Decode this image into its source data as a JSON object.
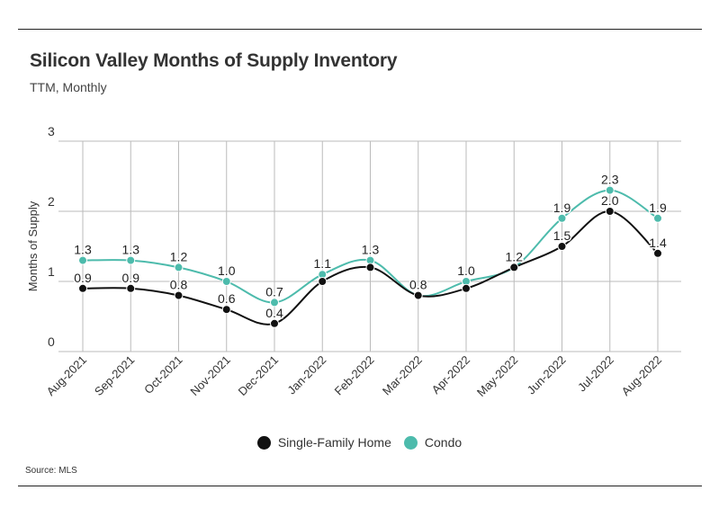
{
  "header": {
    "title": "Silicon Valley Months of Supply Inventory",
    "subtitle": "TTM, Monthly"
  },
  "footer": {
    "source": "Source:  MLS"
  },
  "colors": {
    "single_family": "#111111",
    "condo": "#4dbbac",
    "grid": "#bbbbbb"
  },
  "chart_data": {
    "type": "line",
    "title": "Silicon Valley Months of Supply Inventory",
    "subtitle": "TTM, Monthly",
    "xlabel": "",
    "ylabel": "Months of Supply",
    "ylim": [
      0,
      3
    ],
    "yticks": [
      0,
      1,
      2,
      3
    ],
    "grid": true,
    "legend": "bottom-center",
    "categories": [
      "Aug-2021",
      "Sep-2021",
      "Oct-2021",
      "Nov-2021",
      "Dec-2021",
      "Jan-2022",
      "Feb-2022",
      "Mar-2022",
      "Apr-2022",
      "May-2022",
      "Jun-2022",
      "Jul-2022",
      "Aug-2022"
    ],
    "series": [
      {
        "name": "Single-Family Home",
        "color": "#111111",
        "values": [
          0.9,
          0.9,
          0.8,
          0.6,
          0.4,
          1.0,
          1.2,
          0.8,
          0.9,
          1.2,
          1.5,
          2.0,
          1.4
        ],
        "labels": [
          "0.9",
          "0.9",
          "0.8",
          "0.6",
          "0.4",
          "",
          "",
          "",
          "",
          "",
          "1.5",
          "2.0",
          "1.4"
        ]
      },
      {
        "name": "Condo",
        "color": "#4dbbac",
        "values": [
          1.3,
          1.3,
          1.2,
          1.0,
          0.7,
          1.1,
          1.3,
          0.8,
          1.0,
          1.2,
          1.9,
          2.3,
          1.9
        ],
        "labels": [
          "1.3",
          "1.3",
          "1.2",
          "1.0",
          "0.7",
          "1.1",
          "1.3",
          "0.8",
          "1.0",
          "1.2",
          "1.9",
          "2.3",
          "1.9"
        ]
      }
    ]
  }
}
